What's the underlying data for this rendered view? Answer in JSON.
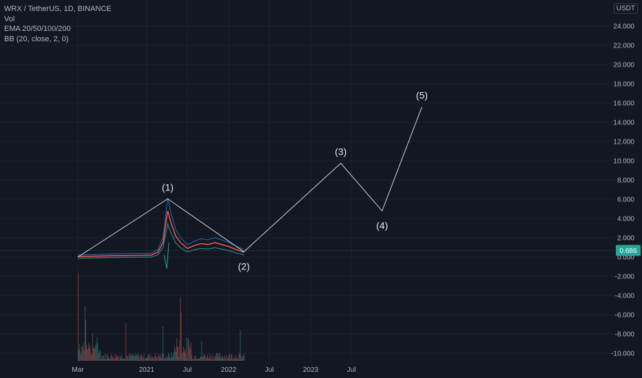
{
  "legend": {
    "symbol": "WRX / TetherUS, 1D, BINANCE",
    "vol": "Vol",
    "ema": "EMA 20/50/100/200",
    "bb": "BB (20, close, 2, 0)"
  },
  "currency": "USDT",
  "chart_data": {
    "type": "line",
    "y_ticks": [
      24,
      22,
      20,
      18,
      16,
      14,
      12,
      10,
      8,
      6,
      4,
      2,
      0,
      -2,
      -4,
      -6,
      -8,
      -10
    ],
    "y_tick_labels": [
      "24.000",
      "22.000",
      "20.000",
      "18.000",
      "16.000",
      "14.000",
      "12.000",
      "10.000",
      "8.000",
      "6.000",
      "4.000",
      "2.000",
      "0.000",
      "-2.000",
      "-4.000",
      "-6.000",
      "-8.000",
      "-10.000"
    ],
    "x_ticks": [
      {
        "label": "Mar",
        "date": "2020-03-01"
      },
      {
        "label": "2021",
        "date": "2021-01-01"
      },
      {
        "label": "Jul",
        "date": "2021-07-01"
      },
      {
        "label": "2022",
        "date": "2022-01-01"
      },
      {
        "label": "Jul",
        "date": "2022-07-01"
      },
      {
        "label": "2023",
        "date": "2023-01-01"
      },
      {
        "label": "Jul",
        "date": "2023-07-01"
      }
    ],
    "ylim": [
      -10.5,
      26
    ],
    "current_price": "0.686",
    "current_price_value": 0.686,
    "price_series": {
      "dates": [
        "2020-03-01",
        "2020-06-01",
        "2020-09-01",
        "2020-12-01",
        "2021-01-20",
        "2021-02-20",
        "2021-03-15",
        "2021-04-05",
        "2021-04-20",
        "2021-05-10",
        "2021-06-01",
        "2021-07-01",
        "2021-08-01",
        "2021-09-01",
        "2021-10-01",
        "2021-11-01",
        "2021-12-01",
        "2022-01-01",
        "2022-02-01",
        "2022-03-10"
      ],
      "values": [
        0.05,
        0.1,
        0.15,
        0.18,
        0.2,
        0.5,
        1.5,
        4.8,
        3.5,
        2.2,
        1.5,
        0.9,
        1.2,
        1.4,
        1.3,
        1.5,
        1.3,
        1.1,
        0.8,
        0.5
      ]
    },
    "elliott_wave": [
      {
        "label": "",
        "date": "2020-03-01",
        "value": 0.0
      },
      {
        "label": "(1)",
        "date": "2021-04-05",
        "value": 6.05
      },
      {
        "label": "(2)",
        "date": "2022-03-10",
        "value": 0.55
      },
      {
        "label": "(3)",
        "date": "2023-05-15",
        "value": 9.75
      },
      {
        "label": "(4)",
        "date": "2023-11-15",
        "value": 4.8
      },
      {
        "label": "(5)",
        "date": "2024-05-10",
        "value": 15.6
      }
    ],
    "colors": {
      "background": "#131722",
      "grid": "#1e222d",
      "wave_line": "#d1d4dc",
      "up": "#26a69a",
      "down": "#ef5350",
      "price_tag": "#26a69a",
      "bb_band": "#2196f3",
      "ema": "#ff9800"
    }
  }
}
